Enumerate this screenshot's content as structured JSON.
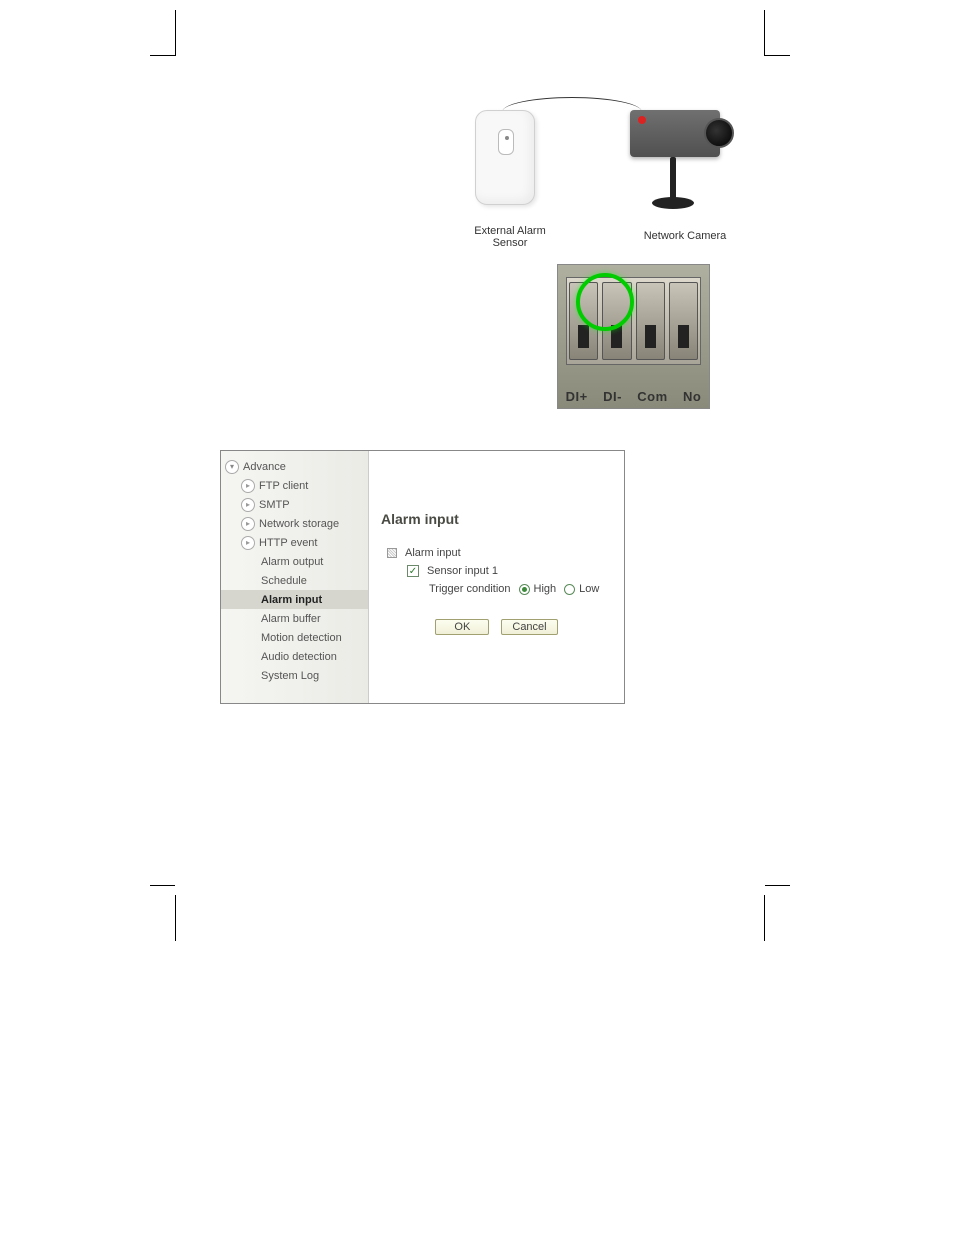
{
  "diagram": {
    "sensor_label": "External Alarm\nSensor",
    "camera_label": "Network Camera"
  },
  "terminal": {
    "labels": [
      "DI+",
      "DI-",
      "Com",
      "No"
    ]
  },
  "config": {
    "sidebar": {
      "root": "Advance",
      "items": [
        {
          "label": "FTP client",
          "icon": "play"
        },
        {
          "label": "SMTP",
          "icon": "play"
        },
        {
          "label": "Network storage",
          "icon": "play"
        },
        {
          "label": "HTTP event",
          "icon": "play"
        },
        {
          "label": "Alarm output",
          "icon": null
        },
        {
          "label": "Schedule",
          "icon": null
        },
        {
          "label": "Alarm input",
          "icon": null,
          "selected": true
        },
        {
          "label": "Alarm buffer",
          "icon": null
        },
        {
          "label": "Motion detection",
          "icon": null
        },
        {
          "label": "Audio detection",
          "icon": null
        },
        {
          "label": "System Log",
          "icon": null
        }
      ]
    },
    "panel": {
      "title": "Alarm input",
      "group_label": "Alarm input",
      "sensor_label": "Sensor input 1",
      "trigger_label": "Trigger condition",
      "opt_high": "High",
      "opt_low": "Low",
      "ok_label": "OK",
      "cancel_label": "Cancel"
    }
  }
}
